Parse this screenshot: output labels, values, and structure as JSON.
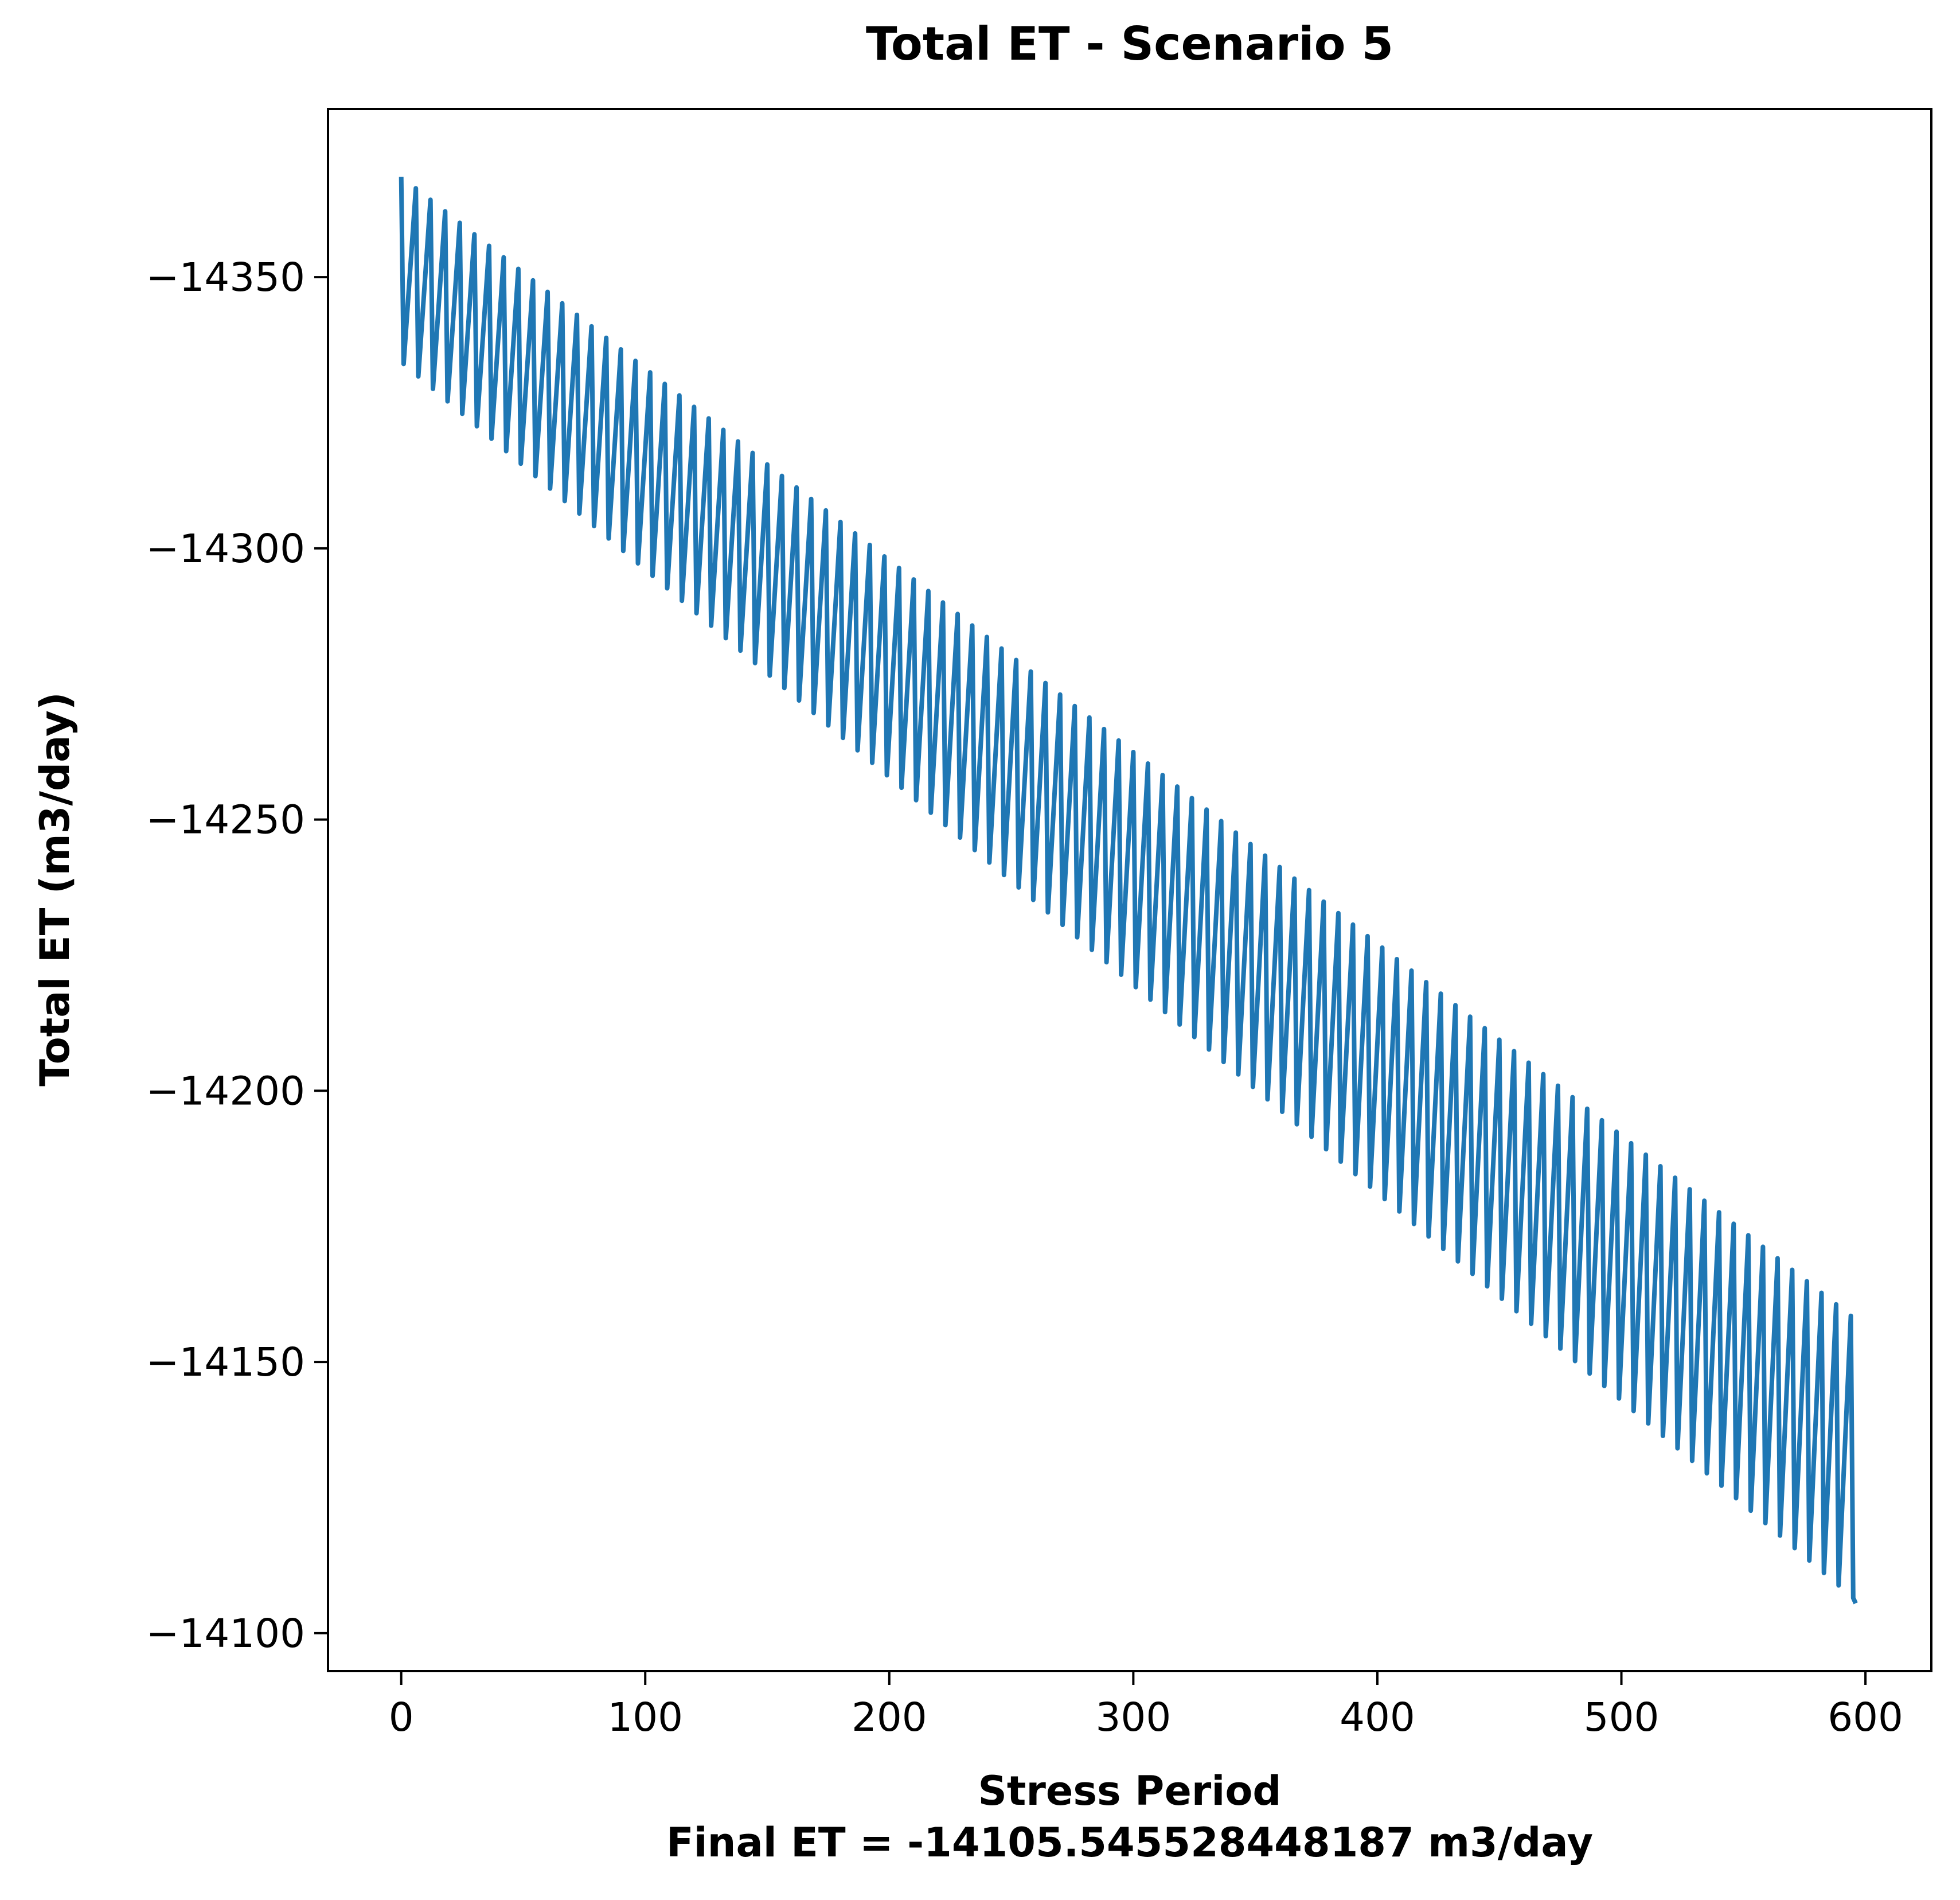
{
  "chart_data": {
    "type": "line",
    "title": "Total ET - Scenario 5",
    "xlabel": "Stress Period",
    "xlabel_line2": "Final ET = -14105.545528448187 m3/day",
    "ylabel": "Total ET (m3/day)",
    "xlim": [
      -30,
      627
    ],
    "ylim": [
      -14093,
      -14381
    ],
    "y_axis_inverted": true,
    "grid": false,
    "xticks": [
      0,
      100,
      200,
      300,
      400,
      500,
      600
    ],
    "xtick_labels": [
      "0",
      "100",
      "200",
      "300",
      "400",
      "500",
      "600"
    ],
    "yticks": [
      -14350,
      -14300,
      -14250,
      -14200,
      -14150,
      -14100
    ],
    "ytick_labels": [
      "−14350",
      "−14300",
      "−14250",
      "−14200",
      "−14150",
      "−14100"
    ],
    "color": "#1f77b4",
    "cycle": {
      "period": 6,
      "peak_offset": 0,
      "trough_offset": 1,
      "first_x": 0,
      "last_x": 596
    },
    "series": [
      {
        "description_peaks": "x = 0, 6, 12, ... 594",
        "peaks_start_end": [
          [
            0,
            -14368.5
          ],
          [
            594,
            -14158.5
          ]
        ],
        "troughs_start_end": [
          [
            1,
            -14334.0
          ],
          [
            595,
            -14106.5
          ]
        ],
        "final_point": [
          596,
          -14105.5
        ]
      }
    ]
  }
}
